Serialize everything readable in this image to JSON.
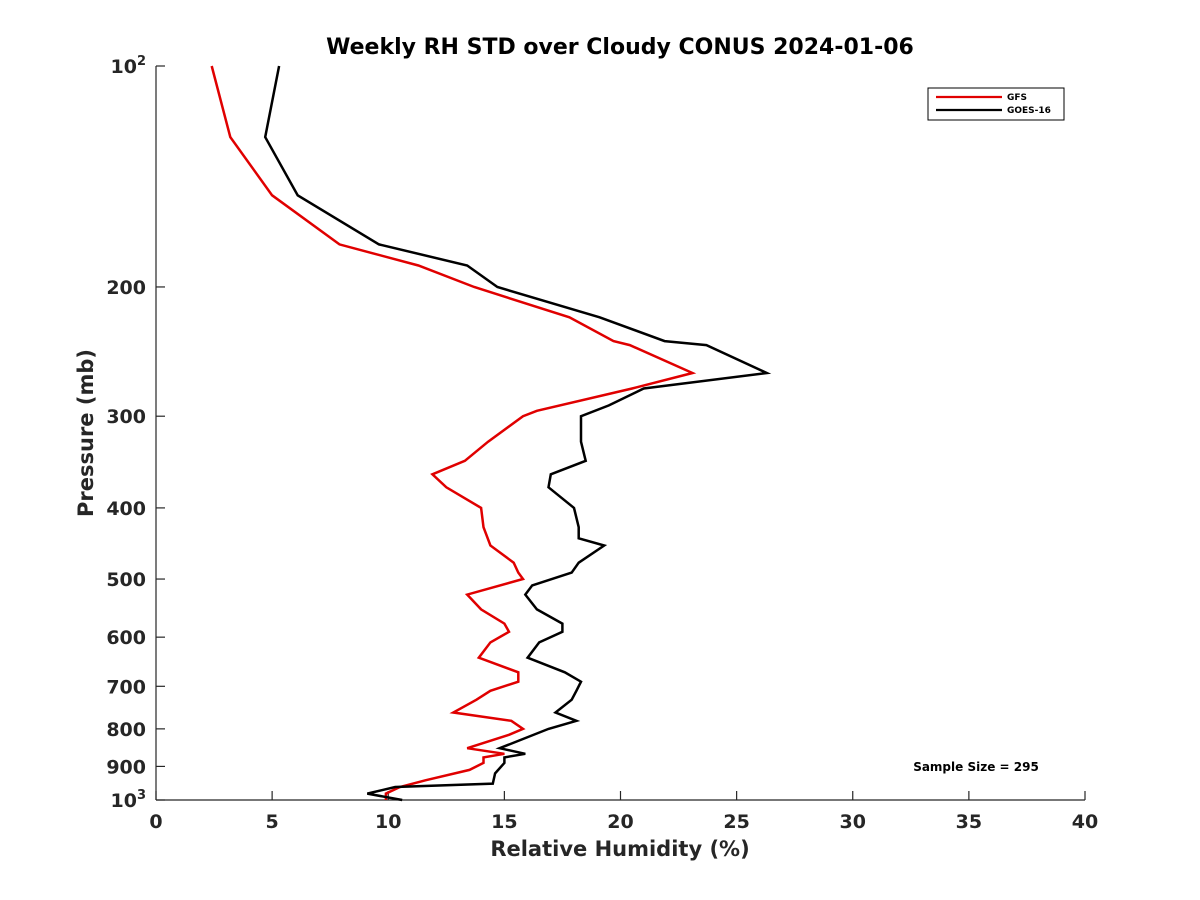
{
  "chart_data": {
    "type": "line",
    "title": "Weekly RH STD over Cloudy CONUS 2024-01-06",
    "xlabel": "Relative Humidity (%)",
    "ylabel": "Pressure (mb)",
    "xlim": [
      0,
      40
    ],
    "ylim": [
      100,
      1000
    ],
    "yscale": "log",
    "y_reversed": true,
    "x_ticks": [
      0,
      5,
      10,
      15,
      20,
      25,
      30,
      35,
      40
    ],
    "x_tick_labels": [
      "0",
      "5",
      "10",
      "15",
      "20",
      "25",
      "30",
      "35",
      "40"
    ],
    "y_ticks": [
      100,
      200,
      300,
      400,
      500,
      600,
      700,
      800,
      900,
      1000
    ],
    "y_tick_labels": [
      {
        "base": "10",
        "sup": "2"
      },
      {
        "base": "200",
        "sup": ""
      },
      {
        "base": "300",
        "sup": ""
      },
      {
        "base": "400",
        "sup": ""
      },
      {
        "base": "500",
        "sup": ""
      },
      {
        "base": "600",
        "sup": ""
      },
      {
        "base": "700",
        "sup": ""
      },
      {
        "base": "800",
        "sup": ""
      },
      {
        "base": "900",
        "sup": ""
      },
      {
        "base": "10",
        "sup": "3"
      }
    ],
    "grid": false,
    "legend_position": "top-right",
    "series": [
      {
        "name": "GFS",
        "color": "#e00000",
        "points": [
          [
            2.4,
            100
          ],
          [
            3.2,
            125
          ],
          [
            5.0,
            150
          ],
          [
            7.9,
            175
          ],
          [
            11.3,
            187
          ],
          [
            13.7,
            200
          ],
          [
            17.8,
            220
          ],
          [
            19.7,
            237
          ],
          [
            20.4,
            240
          ],
          [
            23.1,
            262
          ],
          [
            20.5,
            275
          ],
          [
            16.4,
            295
          ],
          [
            15.8,
            300
          ],
          [
            14.3,
            325
          ],
          [
            13.3,
            345
          ],
          [
            11.9,
            360
          ],
          [
            12.5,
            375
          ],
          [
            14.0,
            400
          ],
          [
            14.1,
            425
          ],
          [
            14.4,
            450
          ],
          [
            15.4,
            475
          ],
          [
            15.6,
            490
          ],
          [
            15.8,
            500
          ],
          [
            13.4,
            525
          ],
          [
            14.0,
            550
          ],
          [
            15.0,
            575
          ],
          [
            15.2,
            590
          ],
          [
            14.4,
            610
          ],
          [
            13.9,
            640
          ],
          [
            15.6,
            670
          ],
          [
            15.6,
            690
          ],
          [
            14.4,
            710
          ],
          [
            13.8,
            730
          ],
          [
            12.8,
            760
          ],
          [
            15.3,
            780
          ],
          [
            15.8,
            800
          ],
          [
            15.2,
            815
          ],
          [
            13.4,
            850
          ],
          [
            15.0,
            865
          ],
          [
            14.1,
            875
          ],
          [
            14.1,
            890
          ],
          [
            13.5,
            910
          ],
          [
            11.6,
            940
          ],
          [
            10.5,
            960
          ],
          [
            9.9,
            980
          ],
          [
            9.9,
            1000
          ]
        ]
      },
      {
        "name": "GOES-16",
        "color": "#000000",
        "points": [
          [
            5.3,
            100
          ],
          [
            4.7,
            125
          ],
          [
            6.1,
            150
          ],
          [
            9.6,
            175
          ],
          [
            13.4,
            187
          ],
          [
            14.7,
            200
          ],
          [
            19.1,
            220
          ],
          [
            21.9,
            237
          ],
          [
            23.7,
            240
          ],
          [
            26.3,
            262
          ],
          [
            21.0,
            275
          ],
          [
            19.5,
            290
          ],
          [
            18.3,
            300
          ],
          [
            18.3,
            325
          ],
          [
            18.5,
            345
          ],
          [
            17.0,
            360
          ],
          [
            16.9,
            375
          ],
          [
            18.0,
            400
          ],
          [
            18.2,
            425
          ],
          [
            18.2,
            440
          ],
          [
            19.3,
            450
          ],
          [
            18.2,
            475
          ],
          [
            17.9,
            490
          ],
          [
            16.2,
            510
          ],
          [
            15.9,
            525
          ],
          [
            16.4,
            550
          ],
          [
            17.5,
            575
          ],
          [
            17.5,
            590
          ],
          [
            16.5,
            610
          ],
          [
            16.0,
            640
          ],
          [
            17.6,
            670
          ],
          [
            18.3,
            690
          ],
          [
            18.1,
            710
          ],
          [
            17.9,
            730
          ],
          [
            17.2,
            760
          ],
          [
            18.1,
            780
          ],
          [
            16.9,
            800
          ],
          [
            14.8,
            850
          ],
          [
            15.9,
            865
          ],
          [
            15.0,
            875
          ],
          [
            15.0,
            890
          ],
          [
            14.6,
            920
          ],
          [
            14.5,
            950
          ],
          [
            10.3,
            960
          ],
          [
            9.1,
            980
          ],
          [
            10.6,
            1000
          ]
        ]
      }
    ],
    "legend": [
      {
        "label": "GFS",
        "color": "#e00000"
      },
      {
        "label": "GOES-16",
        "color": "#000000"
      }
    ],
    "annotation": "Sample Size = 295"
  }
}
